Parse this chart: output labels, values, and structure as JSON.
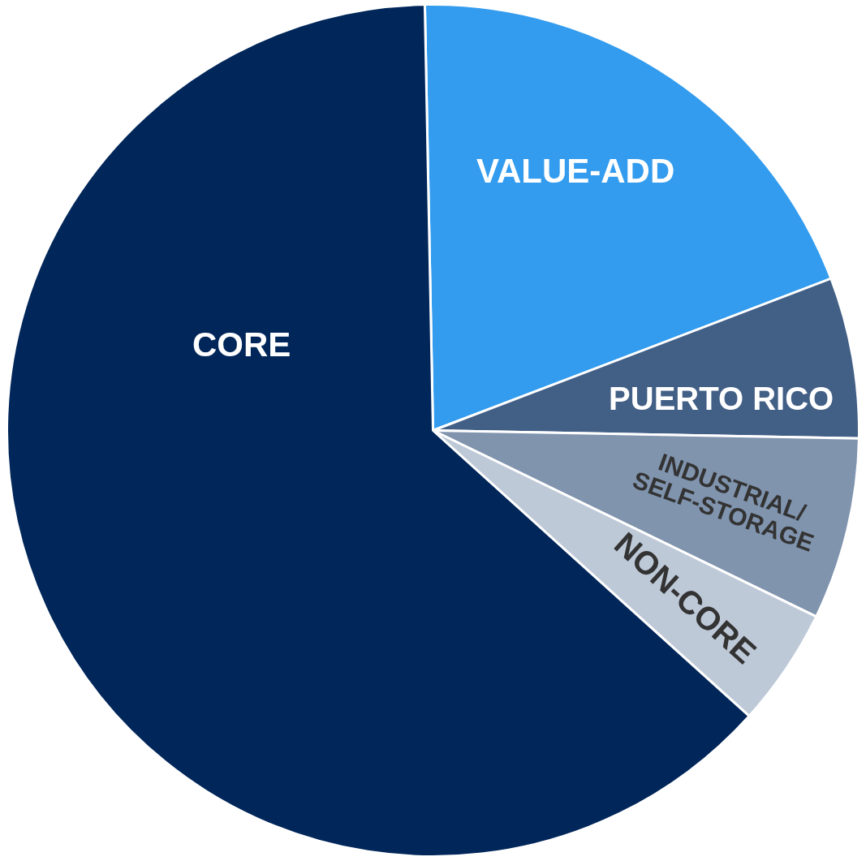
{
  "chart_data": {
    "type": "pie",
    "categories": [
      "VALUE-ADD",
      "PUERTO RICO",
      "INDUSTRIAL/\nSELF-STORAGE",
      "NON-CORE",
      "CORE"
    ],
    "values": [
      19.5,
      6.1,
      6.9,
      4.5,
      63.0
    ],
    "colors": [
      "#339cee",
      "#425f86",
      "#8094ae",
      "#bec9d8",
      "#00265a"
    ],
    "legend": false
  }
}
